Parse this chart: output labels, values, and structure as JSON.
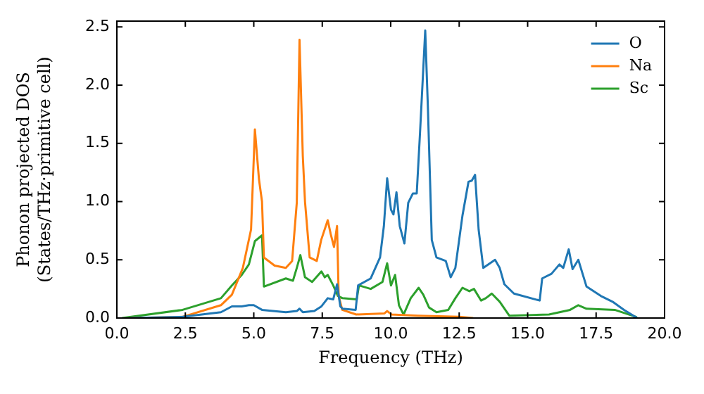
{
  "chart_data": {
    "type": "line",
    "xlabel": "Frequency (THz)",
    "ylabel": "Phonon projected DOS\n(States/THz·primitive cell)",
    "xlim": [
      0,
      20
    ],
    "ylim": [
      0,
      2.55
    ],
    "xticks": [
      {
        "value": 0,
        "label": "0.0"
      },
      2.5,
      {
        "value": 5,
        "label": "5.0"
      },
      7.5,
      {
        "value": 10,
        "label": "10.0"
      },
      12.5,
      {
        "value": 15,
        "label": "15.0"
      },
      17.5,
      {
        "value": 20,
        "label": "20.0"
      }
    ],
    "yticks": [
      {
        "value": 0,
        "label": "0.0"
      },
      0.5,
      {
        "value": 1,
        "label": "1.0"
      },
      1.5,
      {
        "value": 2,
        "label": "2.0"
      },
      2.5
    ],
    "grid": false,
    "legend": "top right",
    "marker": "none",
    "line_style": "solid",
    "series": [
      {
        "name": "O",
        "color": "#1f77b4",
        "x": [
          0.5,
          2.4,
          3.8,
          4.2,
          4.56,
          4.82,
          5.0,
          5.3,
          6.17,
          6.57,
          6.67,
          6.79,
          7.21,
          7.47,
          7.7,
          7.9,
          8.04,
          8.16,
          8.24,
          8.72,
          8.81,
          9.27,
          9.61,
          9.75,
          9.87,
          10.01,
          10.1,
          10.21,
          10.33,
          10.5,
          10.64,
          10.81,
          10.95,
          11.07,
          11.26,
          11.36,
          11.5,
          11.67,
          12.01,
          12.19,
          12.36,
          12.62,
          12.84,
          12.96,
          13.08,
          13.21,
          13.38,
          13.81,
          13.98,
          14.15,
          14.5,
          15.44,
          15.53,
          15.87,
          16.16,
          16.3,
          16.5,
          16.64,
          16.85,
          17.15,
          17.67,
          18.1,
          18.52,
          19.0
        ],
        "values": [
          0,
          0.01,
          0.05,
          0.1,
          0.1,
          0.11,
          0.11,
          0.07,
          0.05,
          0.06,
          0.08,
          0.05,
          0.06,
          0.1,
          0.17,
          0.16,
          0.29,
          0.1,
          0.08,
          0.07,
          0.28,
          0.34,
          0.52,
          0.79,
          1.2,
          0.93,
          0.89,
          1.08,
          0.79,
          0.64,
          0.99,
          1.07,
          1.07,
          1.59,
          2.47,
          1.79,
          0.67,
          0.52,
          0.49,
          0.35,
          0.43,
          0.88,
          1.17,
          1.18,
          1.23,
          0.76,
          0.43,
          0.5,
          0.43,
          0.29,
          0.21,
          0.15,
          0.34,
          0.38,
          0.46,
          0.43,
          0.59,
          0.42,
          0.5,
          0.27,
          0.19,
          0.14,
          0.07,
          0
        ]
      },
      {
        "name": "Na",
        "color": "#ff7f0e",
        "x": [
          0.5,
          2.4,
          3.8,
          4.2,
          4.6,
          4.9,
          5.04,
          5.19,
          5.3,
          5.37,
          5.76,
          6.17,
          6.4,
          6.57,
          6.67,
          6.79,
          6.87,
          7.04,
          7.3,
          7.46,
          7.7,
          7.81,
          7.93,
          8.04,
          8.1,
          8.23,
          8.74,
          9.77,
          9.87,
          10.03,
          11.0,
          12.5,
          13.0
        ],
        "values": [
          0,
          0.01,
          0.11,
          0.2,
          0.43,
          0.76,
          1.62,
          1.19,
          1.0,
          0.52,
          0.45,
          0.43,
          0.49,
          0.99,
          2.39,
          1.39,
          1.0,
          0.52,
          0.49,
          0.67,
          0.84,
          0.72,
          0.61,
          0.79,
          0.19,
          0.07,
          0.03,
          0.04,
          0.06,
          0.03,
          0.02,
          0.01,
          0
        ]
      },
      {
        "name": "Sc",
        "color": "#2ca02c",
        "x": [
          0.2,
          2.4,
          3.8,
          4.2,
          4.56,
          4.82,
          5.04,
          5.3,
          5.37,
          6.17,
          6.43,
          6.57,
          6.7,
          6.87,
          7.13,
          7.47,
          7.59,
          7.7,
          7.9,
          8.07,
          8.24,
          8.76,
          8.84,
          9.27,
          9.7,
          9.87,
          10.01,
          10.16,
          10.3,
          10.47,
          10.73,
          11.02,
          11.19,
          11.4,
          11.67,
          12.1,
          12.36,
          12.62,
          12.87,
          13.04,
          13.3,
          13.47,
          13.69,
          13.98,
          14.33,
          15.78,
          16.55,
          16.85,
          17.15,
          18.18,
          18.96
        ],
        "values": [
          0,
          0.07,
          0.17,
          0.28,
          0.37,
          0.46,
          0.66,
          0.71,
          0.27,
          0.34,
          0.32,
          0.43,
          0.54,
          0.35,
          0.31,
          0.4,
          0.35,
          0.37,
          0.28,
          0.19,
          0.17,
          0.16,
          0.28,
          0.25,
          0.31,
          0.47,
          0.28,
          0.37,
          0.11,
          0.03,
          0.17,
          0.26,
          0.2,
          0.09,
          0.05,
          0.07,
          0.17,
          0.26,
          0.23,
          0.25,
          0.15,
          0.17,
          0.21,
          0.14,
          0.02,
          0.03,
          0.07,
          0.11,
          0.08,
          0.07,
          0.01
        ]
      }
    ]
  }
}
